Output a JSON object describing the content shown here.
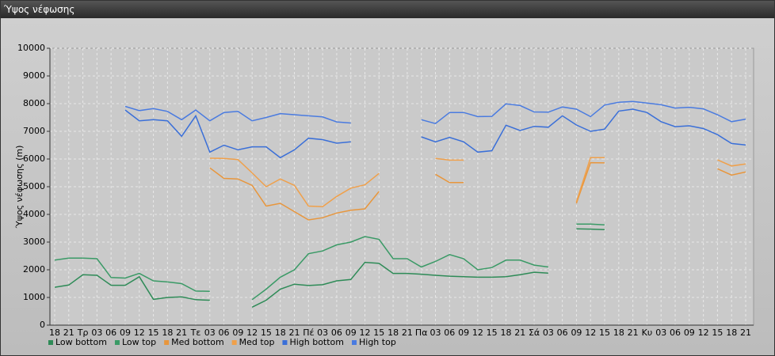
{
  "chart_data": {
    "type": "line",
    "title": "Ύψος νέφωσης",
    "y_label": "Ύψος νέφωσης (m)",
    "categories": [
      "18",
      "21",
      "Τρ",
      "03",
      "06",
      "09",
      "12",
      "15",
      "18",
      "21",
      "Τε",
      "03",
      "06",
      "09",
      "12",
      "15",
      "18",
      "21",
      "Πέ",
      "03",
      "06",
      "09",
      "12",
      "15",
      "18",
      "21",
      "Πα",
      "03",
      "06",
      "09",
      "12",
      "15",
      "18",
      "21",
      "Σά",
      "03",
      "06",
      "09",
      "12",
      "15",
      "18",
      "21",
      "Κυ",
      "03",
      "06",
      "09",
      "12",
      "15",
      "18",
      "21"
    ],
    "ylim": [
      0,
      10000
    ],
    "yticks": [
      0,
      1000,
      2000,
      3000,
      4000,
      5000,
      6000,
      7000,
      8000,
      9000,
      10000
    ],
    "grid": true,
    "series": [
      {
        "name": "Low bottom",
        "color": "#2e8b57",
        "values": [
          1370,
          1450,
          1820,
          1800,
          1440,
          1440,
          1750,
          930,
          1000,
          1020,
          920,
          900,
          null,
          null,
          650,
          900,
          1300,
          1480,
          1430,
          1460,
          1600,
          1650,
          2270,
          2230,
          1870,
          1870,
          1840,
          1800,
          1770,
          1750,
          1730,
          1730,
          1750,
          1820,
          1910,
          1880,
          null,
          3480,
          3470,
          3450,
          null,
          null,
          null,
          null,
          null,
          null,
          null,
          null,
          null,
          null
        ]
      },
      {
        "name": "Low top",
        "color": "#3a9a66",
        "values": [
          2350,
          2420,
          2420,
          2400,
          1720,
          1700,
          1870,
          1600,
          1560,
          1500,
          1230,
          1220,
          null,
          null,
          920,
          1300,
          1730,
          2000,
          2580,
          2680,
          2900,
          3000,
          3200,
          3100,
          2400,
          2400,
          2100,
          2300,
          2550,
          2400,
          2000,
          2080,
          2350,
          2350,
          2170,
          2100,
          null,
          3650,
          3650,
          3620,
          null,
          null,
          null,
          null,
          null,
          null,
          null,
          null,
          null,
          null
        ]
      },
      {
        "name": "Med bottom",
        "color": "#e8963c",
        "values": [
          null,
          null,
          null,
          null,
          null,
          null,
          null,
          null,
          null,
          null,
          null,
          5680,
          5300,
          5280,
          5050,
          4300,
          4400,
          4100,
          3800,
          3880,
          4050,
          4150,
          4200,
          4830,
          null,
          null,
          null,
          5450,
          5150,
          5150,
          null,
          null,
          null,
          null,
          null,
          null,
          null,
          4400,
          5870,
          5860,
          null,
          null,
          null,
          null,
          null,
          null,
          null,
          5650,
          5420,
          5530
        ]
      },
      {
        "name": "Med top",
        "color": "#f0a04a",
        "values": [
          null,
          null,
          null,
          null,
          null,
          null,
          null,
          null,
          null,
          null,
          null,
          6030,
          6020,
          5980,
          5500,
          5000,
          5280,
          5050,
          4300,
          4280,
          4650,
          4950,
          5070,
          5480,
          null,
          null,
          null,
          6020,
          5960,
          5960,
          null,
          null,
          null,
          null,
          null,
          null,
          null,
          4450,
          6050,
          6050,
          null,
          null,
          null,
          null,
          null,
          null,
          null,
          5970,
          5750,
          5820
        ]
      },
      {
        "name": "High bottom",
        "color": "#3a6fd8",
        "values": [
          null,
          null,
          null,
          null,
          null,
          7770,
          7380,
          7420,
          7380,
          6820,
          7560,
          6250,
          6500,
          6330,
          6440,
          6440,
          6050,
          6330,
          6750,
          6700,
          6570,
          6620,
          null,
          null,
          null,
          null,
          6800,
          6620,
          6780,
          6620,
          6250,
          6300,
          7220,
          7030,
          7180,
          7150,
          7560,
          7230,
          7000,
          7080,
          7730,
          7800,
          7680,
          7350,
          7170,
          7200,
          7100,
          6880,
          6560,
          6510
        ]
      },
      {
        "name": "High top",
        "color": "#4a7be0",
        "values": [
          null,
          null,
          null,
          null,
          null,
          7900,
          7750,
          7820,
          7720,
          7420,
          7770,
          7380,
          7680,
          7720,
          7380,
          7500,
          7640,
          7600,
          7560,
          7520,
          7340,
          7300,
          null,
          null,
          null,
          null,
          7420,
          7280,
          7680,
          7680,
          7530,
          7540,
          7990,
          7930,
          7700,
          7690,
          7880,
          7800,
          7530,
          7950,
          8050,
          8080,
          8020,
          7960,
          7840,
          7870,
          7810,
          7600,
          7350,
          7440
        ]
      }
    ]
  }
}
